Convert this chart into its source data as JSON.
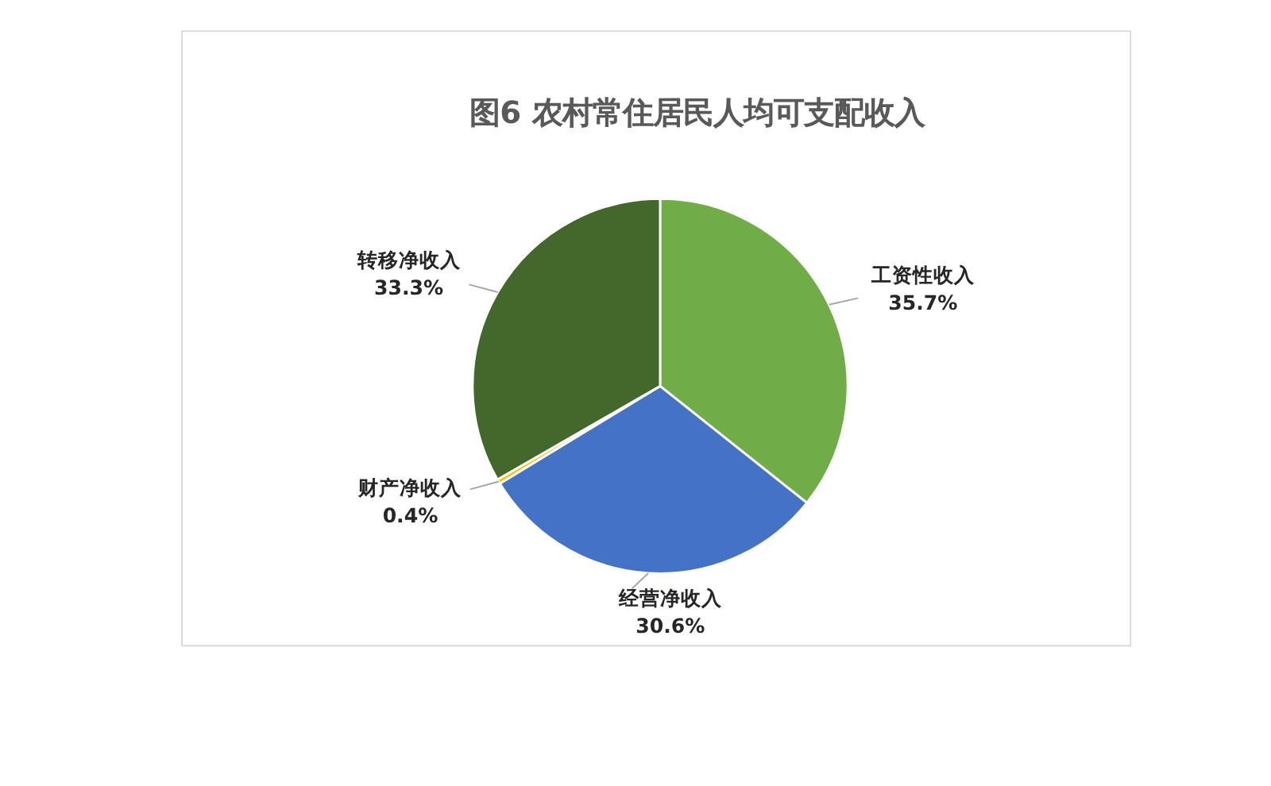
{
  "chart_data": {
    "type": "pie",
    "title": "图6  农村常住居民人均可支配收入",
    "categories": [
      "工资性收入",
      "经营净收入",
      "财产净收入",
      "转移净收入"
    ],
    "values": [
      35.7,
      30.6,
      0.4,
      33.3
    ],
    "colors": [
      "#70ad47",
      "#4472c4",
      "#ffc000",
      "#43682b"
    ],
    "value_labels": [
      "35.7%",
      "30.6%",
      "0.4%",
      "33.3%"
    ],
    "legend": false
  }
}
